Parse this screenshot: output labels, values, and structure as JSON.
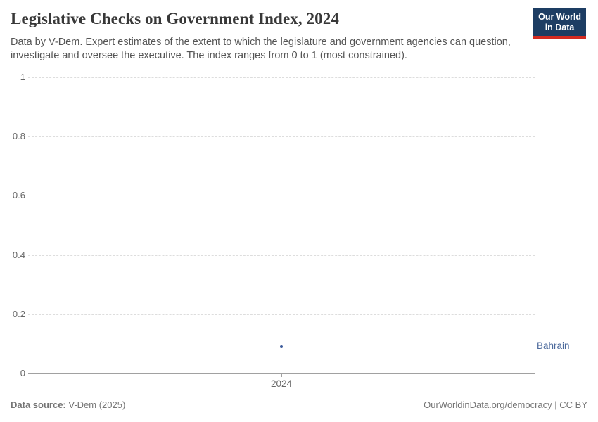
{
  "header": {
    "title": "Legislative Checks on Government Index, 2024",
    "subtitle": "Data by V-Dem. Expert estimates of the extent to which the legislature and government agencies can question, investigate and oversee the executive. The index ranges from 0 to 1 (most constrained).",
    "logo": {
      "line1": "Our World",
      "line2": "in Data"
    }
  },
  "chart_data": {
    "type": "scatter",
    "title": "Legislative Checks on Government Index, 2024",
    "x": [
      2024
    ],
    "xticks": [
      "2024"
    ],
    "series": [
      {
        "name": "Bahrain",
        "values": [
          0.09
        ],
        "color": "#3d5c9c",
        "label_color": "#4c6a9c"
      }
    ],
    "xlabel": "",
    "ylabel": "",
    "ylim": [
      0,
      1
    ],
    "yticks": [
      0,
      0.2,
      0.4,
      0.6,
      0.8,
      1
    ],
    "grid": "horizontal-dashed",
    "legend": "entity-label-right"
  },
  "colors": {
    "title_text": "#383838",
    "subtitle_text": "#555555",
    "axis_text": "#666666",
    "gridline": "#dddddd",
    "axis_line": "#a1a1a1",
    "logo_bg": "#1d3d63",
    "logo_accent": "#d42b21",
    "footer_text": "#757575"
  },
  "footer": {
    "source_label": "Data source:",
    "source_value": " V-Dem (2025)",
    "credit": "OurWorldinData.org/democracy | CC BY"
  }
}
